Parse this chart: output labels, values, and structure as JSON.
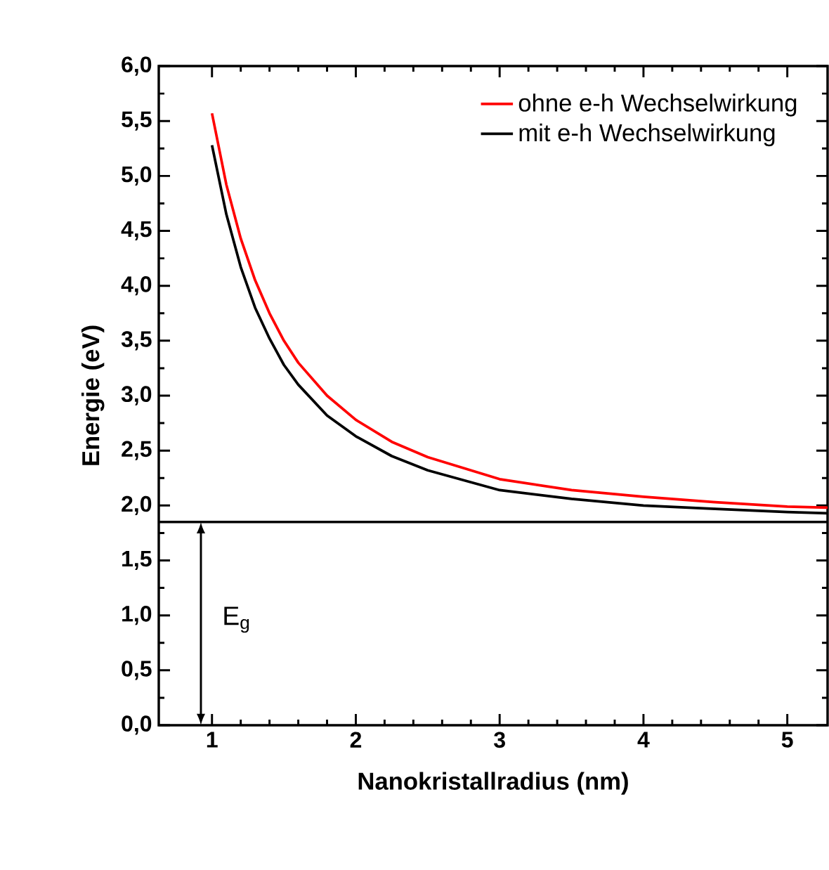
{
  "chart_data": {
    "type": "line",
    "xlabel": "Nanokristallradius (nm)",
    "ylabel": "Energie (eV)",
    "x": [
      1,
      1.1,
      1.2,
      1.3,
      1.4,
      1.5,
      1.6,
      1.8,
      2.0,
      2.25,
      2.5,
      3.0,
      3.5,
      4.0,
      4.5,
      5.0,
      5.28
    ],
    "series": [
      {
        "name": "ohne e-h Wechselwirkung",
        "color": "#ff0000",
        "values": [
          5.57,
          4.92,
          4.43,
          4.05,
          3.75,
          3.5,
          3.3,
          3.0,
          2.78,
          2.58,
          2.44,
          2.24,
          2.14,
          2.08,
          2.03,
          1.99,
          1.98
        ]
      },
      {
        "name": "mit e-h Wechselwirkung",
        "color": "#000000",
        "values": [
          5.28,
          4.65,
          4.17,
          3.8,
          3.52,
          3.28,
          3.1,
          2.82,
          2.63,
          2.45,
          2.32,
          2.14,
          2.06,
          2.0,
          1.97,
          1.94,
          1.93
        ]
      }
    ],
    "xlim": [
      0.63,
      5.28
    ],
    "ylim": [
      0,
      6
    ],
    "xticks": [
      1,
      2,
      3,
      4,
      5
    ],
    "yticks": [
      {
        "value": 0,
        "label": "0,0"
      },
      {
        "value": 0.5,
        "label": "0,5"
      },
      {
        "value": 1,
        "label": "1,0"
      },
      {
        "value": 1.5,
        "label": "1,5"
      },
      {
        "value": 2,
        "label": "2,0"
      },
      {
        "value": 2.5,
        "label": "2,5"
      },
      {
        "value": 3,
        "label": "3,0"
      },
      {
        "value": 3.5,
        "label": "3,5"
      },
      {
        "value": 4,
        "label": "4,0"
      },
      {
        "value": 4.5,
        "label": "4,5"
      },
      {
        "value": 5,
        "label": "5,0"
      },
      {
        "value": 5.5,
        "label": "5,5"
      },
      {
        "value": 6,
        "label": "6,0"
      }
    ],
    "ref_lines": [
      {
        "axis": "y",
        "value": 1.85,
        "color": "#000000"
      }
    ],
    "annotations": [
      "E$_{g}$"
    ],
    "legend": "top right",
    "grid": false,
    "marker": "none",
    "line_style": "solid"
  }
}
